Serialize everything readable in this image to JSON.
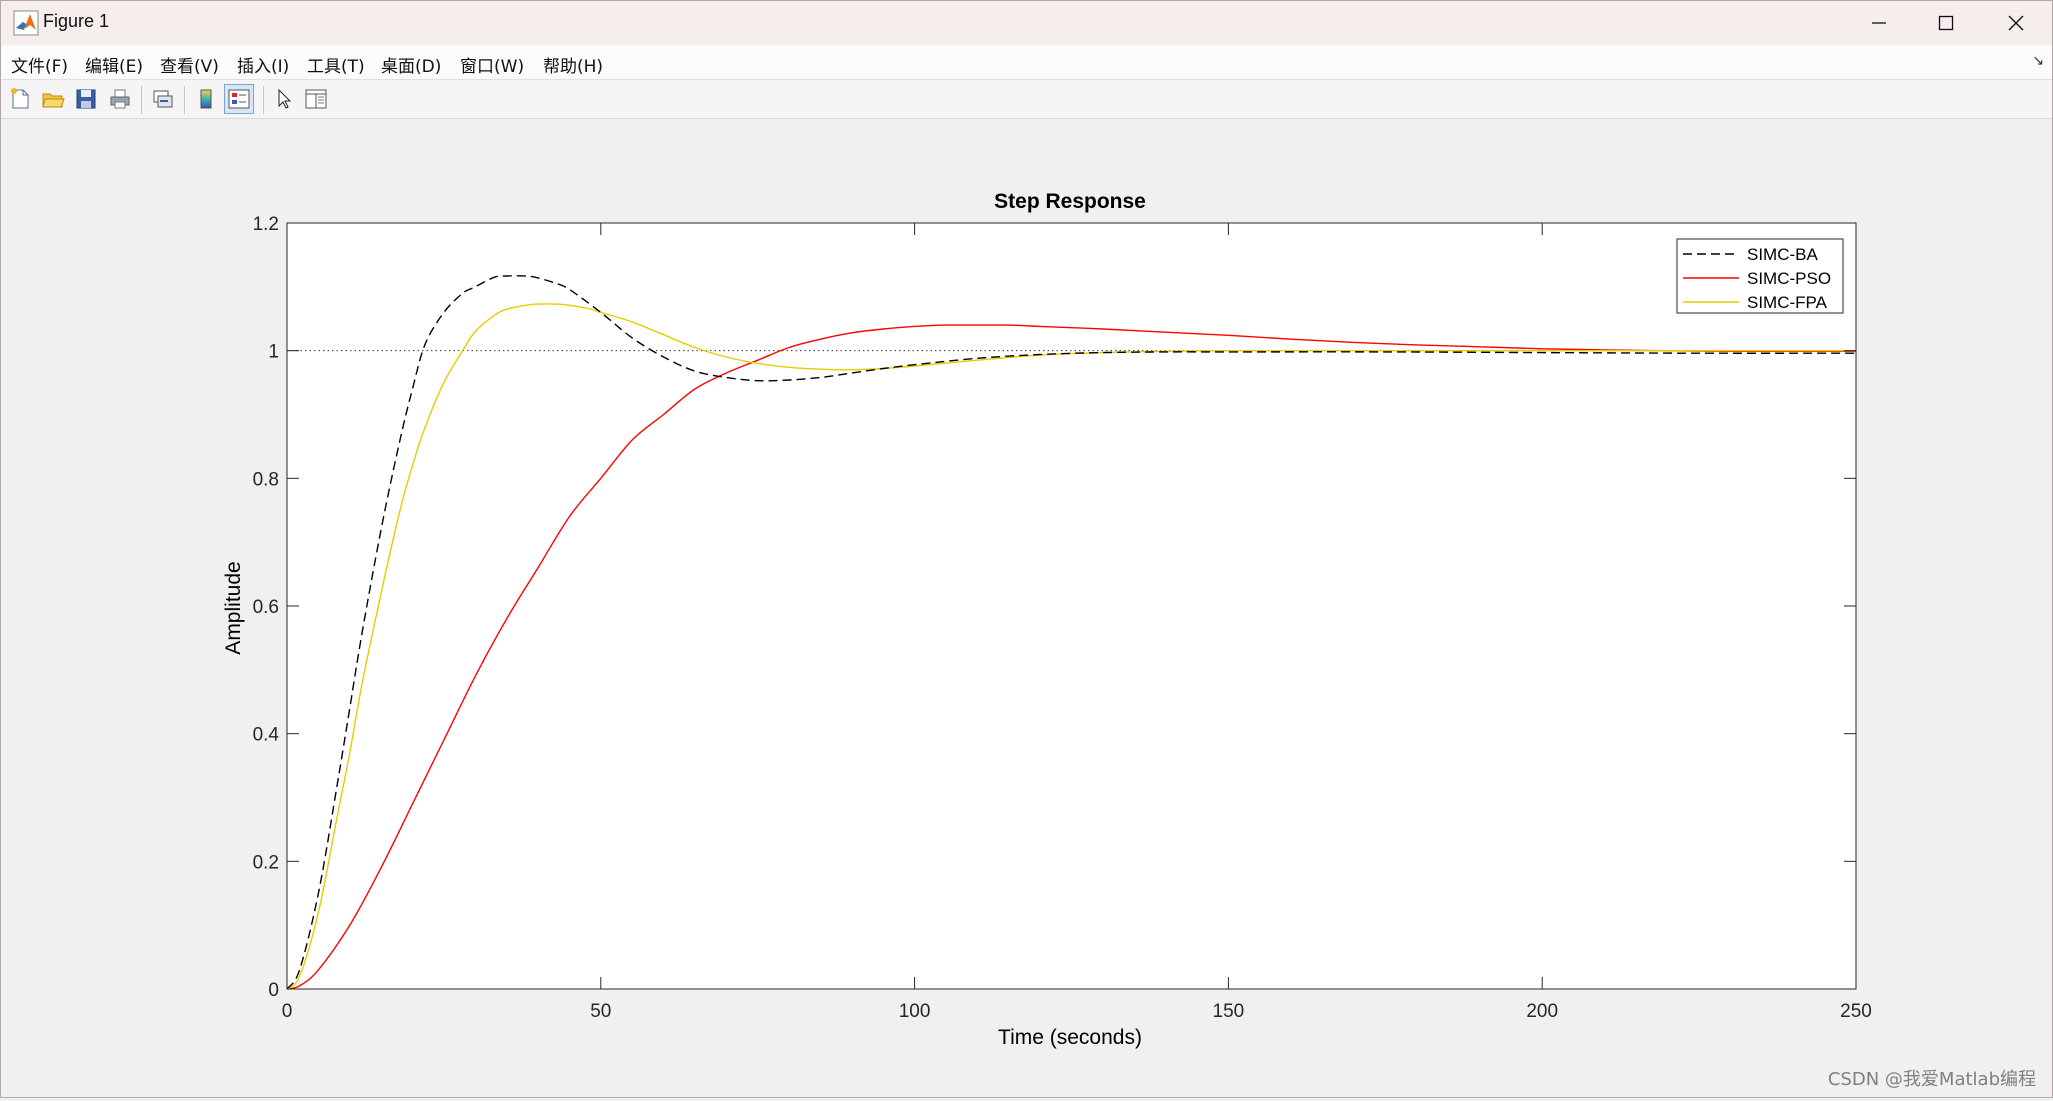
{
  "window": {
    "title": "Figure 1",
    "controls": {
      "minimize": "minimize-icon",
      "maximize": "maximize-icon",
      "close": "close-icon"
    }
  },
  "menu": {
    "items": [
      "文件(F)",
      "编辑(E)",
      "查看(V)",
      "插入(I)",
      "工具(T)",
      "桌面(D)",
      "窗口(W)",
      "帮助(H)"
    ],
    "overflow_glyph": "↘"
  },
  "toolbar": {
    "buttons": [
      {
        "name": "new-figure",
        "icon": "new-figure-icon"
      },
      {
        "name": "open-file",
        "icon": "folder-open-icon"
      },
      {
        "name": "save",
        "icon": "save-icon"
      },
      {
        "name": "print",
        "icon": "print-icon"
      },
      {
        "name": "link-plot",
        "icon": "link-plot-icon"
      },
      {
        "name": "insert-colorbar",
        "icon": "colorbar-icon"
      },
      {
        "name": "insert-legend",
        "icon": "legend-icon",
        "active": true
      },
      {
        "name": "edit-plot",
        "icon": "pointer-icon"
      },
      {
        "name": "property-inspector",
        "icon": "panel-icon"
      }
    ]
  },
  "chart_data": {
    "type": "line",
    "title": "Step Response",
    "xlabel": "Time (seconds)",
    "ylabel": "Amplitude",
    "xlim": [
      0,
      250
    ],
    "ylim": [
      0,
      1.2
    ],
    "xticks": [
      0,
      50,
      100,
      150,
      200,
      250
    ],
    "yticks": [
      0,
      0.2,
      0.4,
      0.6,
      0.8,
      1,
      1.2
    ],
    "ytick_labels": [
      "0",
      "0.2",
      "0.4",
      "0.6",
      "0.8",
      "1",
      "1.2"
    ],
    "grid": false,
    "legend_position": "top-right",
    "reference_line": {
      "y": 1,
      "style": "dotted"
    },
    "series": [
      {
        "name": "SIMC-BA",
        "color": "#000000",
        "dash": "dashed",
        "x": [
          0,
          2,
          5,
          8,
          10,
          12,
          15,
          18,
          20,
          22,
          25,
          28,
          30,
          33,
          35,
          38,
          40,
          43,
          45,
          50,
          55,
          60,
          65,
          70,
          75,
          80,
          85,
          90,
          95,
          100,
          110,
          120,
          130,
          140,
          150,
          175,
          200,
          225,
          250
        ],
        "y": [
          0,
          0.03,
          0.15,
          0.32,
          0.44,
          0.56,
          0.72,
          0.86,
          0.94,
          1.01,
          1.06,
          1.09,
          1.1,
          1.115,
          1.117,
          1.117,
          1.114,
          1.105,
          1.096,
          1.06,
          1.02,
          0.99,
          0.968,
          0.958,
          0.953,
          0.954,
          0.958,
          0.965,
          0.972,
          0.978,
          0.988,
          0.994,
          0.997,
          0.998,
          0.998,
          0.998,
          0.997,
          0.996,
          0.996
        ]
      },
      {
        "name": "SIMC-PSO",
        "color": "#ff0000",
        "dash": "solid",
        "x": [
          0,
          2,
          5,
          10,
          15,
          20,
          25,
          30,
          35,
          40,
          45,
          50,
          55,
          60,
          65,
          70,
          75,
          80,
          85,
          90,
          95,
          100,
          105,
          110,
          115,
          120,
          125,
          130,
          140,
          150,
          160,
          170,
          180,
          190,
          200,
          210,
          220,
          230,
          240,
          250
        ],
        "y": [
          0,
          0.005,
          0.03,
          0.1,
          0.19,
          0.29,
          0.39,
          0.49,
          0.58,
          0.66,
          0.74,
          0.8,
          0.86,
          0.9,
          0.94,
          0.965,
          0.985,
          1.005,
          1.018,
          1.028,
          1.034,
          1.038,
          1.04,
          1.04,
          1.04,
          1.038,
          1.036,
          1.034,
          1.029,
          1.024,
          1.018,
          1.013,
          1.009,
          1.006,
          1.003,
          1.001,
          1.0,
          0.999,
          0.999,
          0.999
        ]
      },
      {
        "name": "SIMC-FPA",
        "color": "#e6cc00",
        "dash": "solid",
        "x": [
          0,
          2,
          5,
          8,
          10,
          12,
          15,
          18,
          20,
          22,
          25,
          28,
          30,
          33,
          35,
          38,
          40,
          43,
          45,
          48,
          50,
          55,
          60,
          65,
          70,
          75,
          80,
          85,
          90,
          95,
          100,
          110,
          120,
          130,
          150,
          175,
          200,
          225,
          250
        ],
        "y": [
          0,
          0.02,
          0.12,
          0.27,
          0.37,
          0.48,
          0.62,
          0.75,
          0.82,
          0.88,
          0.95,
          1.0,
          1.03,
          1.055,
          1.065,
          1.071,
          1.073,
          1.073,
          1.071,
          1.066,
          1.06,
          1.045,
          1.025,
          1.005,
          0.99,
          0.98,
          0.974,
          0.971,
          0.97,
          0.972,
          0.976,
          0.985,
          0.993,
          0.997,
          1.0,
          1.0,
          1.0,
          1.0,
          1.0
        ]
      }
    ]
  },
  "watermark": "CSDN @我爱Matlab编程"
}
